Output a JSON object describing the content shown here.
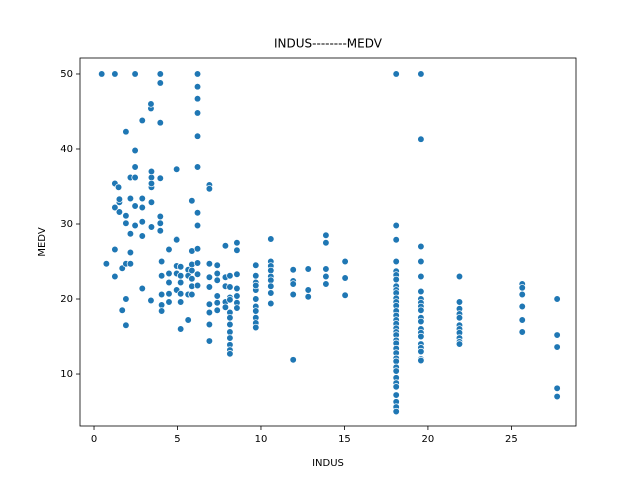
{
  "chart_data": {
    "type": "scatter",
    "title": "INDUS--------MEDV",
    "x_label": "INDUS",
    "y_label": "MEDV",
    "color": "#1f77b4",
    "xlim": [
      -0.84,
      28.87
    ],
    "ylim": [
      3.07,
      52.13
    ],
    "xticks": [
      0,
      5,
      10,
      15,
      20,
      25
    ],
    "yticks": [
      10,
      20,
      30,
      40,
      50
    ],
    "x": [
      0.46,
      0.74,
      1.25,
      1.25,
      1.25,
      1.25,
      1.25,
      1.47,
      1.52,
      1.52,
      1.52,
      1.69,
      1.69,
      1.91,
      1.91,
      1.91,
      1.91,
      1.91,
      1.91,
      2.18,
      2.18,
      2.18,
      2.18,
      2.18,
      2.46,
      2.46,
      2.46,
      2.46,
      2.46,
      2.46,
      2.46,
      2.89,
      2.89,
      2.89,
      2.89,
      2.89,
      2.89,
      3.41,
      3.41,
      3.41,
      3.41,
      3.44,
      3.44,
      3.44,
      3.44,
      3.44,
      3.44,
      3.97,
      3.97,
      3.97,
      3.97,
      3.97,
      3.97,
      3.97,
      4.05,
      4.05,
      4.05,
      4.05,
      4.05,
      4.49,
      4.49,
      4.49,
      4.49,
      4.49,
      4.95,
      4.95,
      4.95,
      4.95,
      4.95,
      4.95,
      5.19,
      5.19,
      5.19,
      5.19,
      5.19,
      5.19,
      5.64,
      5.64,
      5.64,
      5.64,
      5.86,
      5.86,
      5.86,
      5.86,
      5.86,
      5.86,
      5.86,
      6.2,
      6.2,
      6.2,
      6.2,
      6.2,
      6.2,
      6.2,
      6.2,
      6.2,
      6.2,
      6.2,
      6.2,
      6.91,
      6.91,
      6.91,
      6.91,
      6.91,
      6.91,
      6.91,
      6.91,
      6.91,
      7.38,
      7.38,
      7.38,
      7.38,
      7.38,
      7.38,
      7.87,
      7.87,
      7.87,
      7.87,
      7.87,
      8.14,
      8.14,
      8.14,
      8.14,
      8.14,
      8.14,
      8.14,
      8.14,
      8.14,
      8.14,
      8.14,
      8.14,
      8.56,
      8.56,
      8.56,
      8.56,
      8.56,
      8.56,
      8.56,
      9.69,
      9.69,
      9.69,
      9.69,
      9.69,
      9.69,
      9.69,
      9.69,
      9.69,
      9.69,
      9.69,
      10.59,
      10.59,
      10.59,
      10.59,
      10.59,
      10.59,
      10.59,
      10.59,
      10.59,
      11.93,
      11.93,
      11.93,
      11.93,
      11.93,
      12.83,
      12.83,
      12.83,
      13.89,
      13.89,
      13.89,
      13.89,
      13.89,
      15.04,
      15.04,
      15.04,
      18.1,
      18.1,
      18.1,
      18.1,
      18.1,
      18.1,
      18.1,
      18.1,
      18.1,
      18.1,
      18.1,
      18.1,
      18.1,
      18.1,
      18.1,
      18.1,
      18.1,
      18.1,
      18.1,
      18.1,
      18.1,
      18.1,
      18.1,
      18.1,
      18.1,
      18.1,
      18.1,
      18.1,
      18.1,
      18.1,
      18.1,
      18.1,
      18.1,
      18.1,
      18.1,
      18.1,
      18.1,
      19.58,
      19.58,
      19.58,
      19.58,
      19.58,
      19.58,
      19.58,
      19.58,
      19.58,
      19.58,
      19.58,
      19.58,
      19.58,
      19.58,
      19.58,
      19.58,
      19.58,
      19.58,
      19.58,
      19.58,
      21.89,
      21.89,
      21.89,
      21.89,
      21.89,
      21.89,
      21.89,
      21.89,
      21.89,
      21.89,
      21.89,
      25.65,
      25.65,
      25.65,
      25.65,
      25.65,
      25.65,
      27.74,
      27.74,
      27.74,
      27.74,
      27.74
    ],
    "values": [
      50,
      24.7,
      50,
      35.4,
      32.2,
      26.6,
      23,
      34.9,
      31.6,
      32.9,
      33.3,
      24.1,
      18.5,
      42.3,
      31.1,
      30.1,
      24.7,
      16.5,
      20,
      33.4,
      36.2,
      28.7,
      26.2,
      24.7,
      50,
      50,
      39.8,
      37.6,
      36.2,
      29.8,
      32.4,
      33.4,
      32.2,
      30.3,
      28.4,
      43.8,
      21.4,
      45.4,
      46,
      29.6,
      19.8,
      34.9,
      36.2,
      35.4,
      32.9,
      37,
      29.6,
      43.5,
      48.8,
      50,
      36.1,
      31,
      30.1,
      29.1,
      23.1,
      20.6,
      19.2,
      18.4,
      25,
      23.4,
      26.6,
      20.7,
      22.2,
      19.6,
      28,
      27.9,
      23.4,
      37.3,
      24.4,
      21.2,
      23.1,
      22.2,
      19.6,
      20.7,
      16,
      24.3,
      23.9,
      17.2,
      20.6,
      23.1,
      21.7,
      22.7,
      24.6,
      26.4,
      33.1,
      23.8,
      20.6,
      50,
      48.3,
      46.7,
      44.8,
      41.7,
      37.6,
      31.5,
      29.8,
      26.7,
      24.8,
      23.3,
      21.8,
      35.2,
      34.7,
      24.7,
      22.9,
      21.6,
      19.3,
      16.6,
      14.4,
      18.2,
      24.5,
      23.4,
      22.5,
      20.4,
      19.5,
      18.5,
      27.1,
      22.9,
      21.7,
      19.6,
      18.9,
      23.1,
      21.6,
      20.2,
      19.9,
      18.2,
      17.5,
      16.6,
      15.6,
      14.8,
      13.9,
      13.2,
      12.7,
      27.5,
      26.5,
      23.3,
      21.4,
      20.4,
      19.5,
      18.8,
      24.5,
      23.1,
      22.2,
      21.2,
      20,
      19,
      18.4,
      17.5,
      16.8,
      16.2,
      21.8,
      28,
      25,
      24.4,
      23.8,
      23,
      22.5,
      21.7,
      20.8,
      19.4,
      23.9,
      22.4,
      20.6,
      22,
      11.9,
      24,
      21.2,
      20.3,
      28.5,
      27.5,
      24,
      23,
      22,
      25,
      22.8,
      20.5,
      50,
      50,
      50,
      29.8,
      27.9,
      25,
      23.7,
      23.2,
      22.6,
      21.7,
      21.2,
      20.8,
      20.1,
      19.6,
      19.1,
      18.4,
      17.8,
      17.2,
      16.7,
      16.1,
      15.6,
      15.2,
      14.5,
      14.1,
      13.4,
      12.8,
      12.1,
      11.7,
      10.9,
      10.4,
      9.5,
      8.8,
      8.3,
      7.2,
      6.3,
      5.6,
      5,
      50,
      41.3,
      27,
      25,
      23,
      21,
      20,
      19.5,
      19,
      18.5,
      17.5,
      17,
      16,
      15.5,
      15,
      14,
      13.5,
      13,
      12,
      11.8,
      23,
      19.6,
      18.7,
      18,
      17.5,
      16.5,
      16,
      15.5,
      14.8,
      14.3,
      14,
      22,
      21.5,
      20.6,
      19,
      17.2,
      15.6,
      20,
      15.2,
      13.6,
      8.1,
      7
    ]
  }
}
